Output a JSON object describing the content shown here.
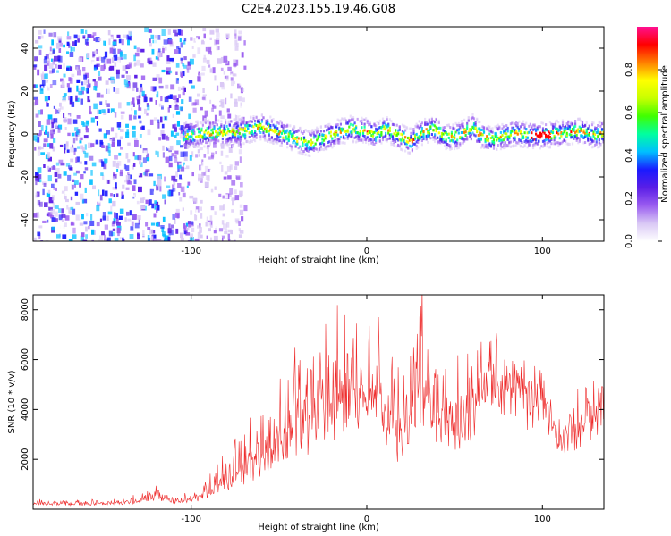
{
  "figure": {
    "title": "C2E4.2023.155.19.46.G08"
  },
  "chart_data": [
    {
      "type": "heatmap",
      "xlabel": "Height of straight line (km)",
      "ylabel": "Frequency (Hz)",
      "xlim": [
        -190,
        135
      ],
      "ylim": [
        -50,
        50
      ],
      "xticks": [
        -100,
        0,
        100
      ],
      "yticks": [
        -40,
        -20,
        0,
        20,
        40
      ],
      "colorbar": {
        "label": "Normalized spectral amplitude",
        "range": [
          0,
          1
        ],
        "ticks": [
          "0.0",
          "0.2",
          "0.4",
          "0.6",
          "0.8"
        ],
        "colormap": [
          "#ffffff",
          "#d9c8f5",
          "#9a5cf0",
          "#5a1ee6",
          "#1a1aff",
          "#00bfff",
          "#00ffa0",
          "#40ff00",
          "#c8ff00",
          "#ffff00",
          "#ff8000",
          "#ff0000",
          "#ff1090"
        ]
      },
      "noise_region_x": [
        -190,
        -85
      ],
      "ridge": {
        "x": [
          -105,
          -90,
          -70,
          -60,
          -50,
          -40,
          -33,
          -25,
          -18,
          -10,
          0,
          5,
          10,
          20,
          25,
          30,
          38,
          45,
          52,
          60,
          63,
          70,
          78,
          85,
          92,
          100,
          110,
          120,
          130,
          135
        ],
        "f_hz": [
          0,
          1,
          2,
          4,
          1,
          -2,
          -4,
          -1,
          1,
          3,
          2,
          0,
          3,
          -1,
          -3,
          1,
          3,
          -1,
          0,
          4,
          1,
          -2,
          0,
          1,
          0,
          0,
          1,
          2,
          0,
          1
        ]
      },
      "grid": false
    },
    {
      "type": "line",
      "xlabel": "Height of straight line (km)",
      "ylabel": "SNR (10 * v/v)",
      "xlim": [
        -190,
        135
      ],
      "ylim": [
        0,
        8600
      ],
      "xticks": [
        -100,
        0,
        100
      ],
      "yticks": [
        2000,
        4000,
        6000,
        8000
      ],
      "series": [
        {
          "color": "#ee2b2b",
          "x": [
            -190,
            -170,
            -150,
            -130,
            -120,
            -110,
            -100,
            -90,
            -80,
            -70,
            -60,
            -50,
            -40,
            -30,
            -20,
            -10,
            0,
            10,
            20,
            30,
            40,
            50,
            60,
            70,
            80,
            90,
            100,
            110,
            120,
            130,
            135
          ],
          "base": [
            200,
            180,
            200,
            250,
            500,
            250,
            300,
            600,
            900,
            1300,
            1600,
            2200,
            2600,
            3000,
            3600,
            3500,
            4500,
            3200,
            2200,
            4500,
            3300,
            2800,
            3500,
            5500,
            4500,
            4000,
            4500,
            2500,
            3000,
            3800,
            4000
          ],
          "peak": [
            400,
            380,
            450,
            550,
            900,
            500,
            700,
            1500,
            2500,
            3400,
            3800,
            5200,
            6500,
            6800,
            8200,
            7000,
            6800,
            7200,
            5600,
            8500,
            6300,
            5500,
            7000,
            7000,
            6400,
            5500,
            4900,
            3200,
            4800,
            5000,
            5100
          ]
        }
      ],
      "grid": false
    }
  ]
}
